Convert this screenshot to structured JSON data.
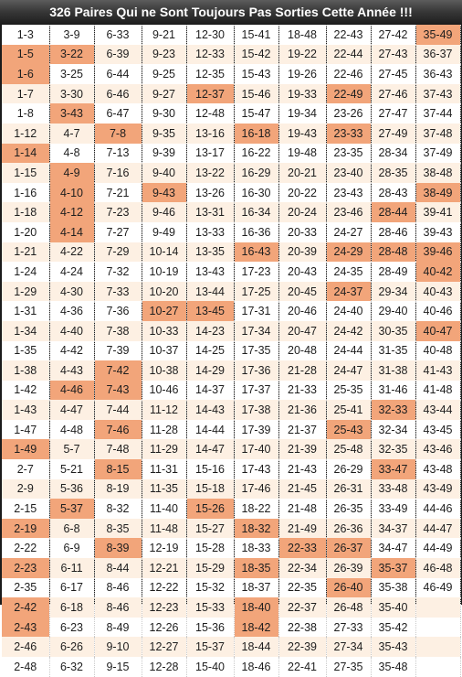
{
  "title": "326 Paires Qui ne Sont Toujours Pas Sorties Cette Année !!!",
  "colors": {
    "title_bar": "#2e2e2e",
    "title_text": "#ffffff",
    "row_light": "#ffffff",
    "row_tint": "#fdf0e3",
    "highlight": "#f2a57a",
    "frame": "#1b1b1b"
  },
  "rows": [
    [
      "1-3",
      "3-9",
      "6-33",
      "9-21",
      "12-30",
      "15-41",
      "18-48",
      "22-43",
      "27-42",
      "35-49"
    ],
    [
      "1-5",
      "3-22",
      "6-39",
      "9-23",
      "12-33",
      "15-42",
      "19-22",
      "22-44",
      "27-43",
      "36-37"
    ],
    [
      "1-6",
      "3-25",
      "6-44",
      "9-25",
      "12-35",
      "15-43",
      "19-26",
      "22-46",
      "27-45",
      "36-43"
    ],
    [
      "1-7",
      "3-30",
      "6-46",
      "9-27",
      "12-37",
      "15-46",
      "19-33",
      "22-49",
      "27-46",
      "37-43"
    ],
    [
      "1-8",
      "3-43",
      "6-47",
      "9-30",
      "12-48",
      "15-47",
      "19-34",
      "23-26",
      "27-47",
      "37-44"
    ],
    [
      "1-12",
      "4-7",
      "7-8",
      "9-35",
      "13-16",
      "16-18",
      "19-43",
      "23-33",
      "27-49",
      "37-48"
    ],
    [
      "1-14",
      "4-8",
      "7-13",
      "9-39",
      "13-17",
      "16-22",
      "19-48",
      "23-35",
      "28-34",
      "37-49"
    ],
    [
      "1-15",
      "4-9",
      "7-16",
      "9-40",
      "13-22",
      "16-29",
      "20-21",
      "23-40",
      "28-35",
      "38-48"
    ],
    [
      "1-16",
      "4-10",
      "7-21",
      "9-43",
      "13-26",
      "16-30",
      "20-22",
      "23-43",
      "28-43",
      "38-49"
    ],
    [
      "1-18",
      "4-12",
      "7-23",
      "9-46",
      "13-31",
      "16-34",
      "20-24",
      "23-46",
      "28-44",
      "39-41"
    ],
    [
      "1-20",
      "4-14",
      "7-27",
      "9-49",
      "13-33",
      "16-36",
      "20-33",
      "24-27",
      "28-46",
      "39-43"
    ],
    [
      "1-21",
      "4-22",
      "7-29",
      "10-14",
      "13-35",
      "16-43",
      "20-39",
      "24-29",
      "28-48",
      "39-46"
    ],
    [
      "1-24",
      "4-24",
      "7-32",
      "10-19",
      "13-43",
      "17-23",
      "20-43",
      "24-35",
      "28-49",
      "40-42"
    ],
    [
      "1-29",
      "4-30",
      "7-33",
      "10-20",
      "13-44",
      "17-25",
      "20-45",
      "24-37",
      "29-34",
      "40-43"
    ],
    [
      "1-31",
      "4-36",
      "7-36",
      "10-27",
      "13-45",
      "17-31",
      "20-46",
      "24-40",
      "29-40",
      "40-46"
    ],
    [
      "1-34",
      "4-40",
      "7-38",
      "10-33",
      "14-23",
      "17-34",
      "20-47",
      "24-42",
      "30-35",
      "40-47"
    ],
    [
      "1-35",
      "4-42",
      "7-39",
      "10-37",
      "14-25",
      "17-35",
      "20-48",
      "24-44",
      "31-35",
      "40-48"
    ],
    [
      "1-38",
      "4-43",
      "7-42",
      "10-38",
      "14-29",
      "17-36",
      "21-28",
      "24-47",
      "31-38",
      "41-43"
    ],
    [
      "1-42",
      "4-46",
      "7-43",
      "10-46",
      "14-37",
      "17-37",
      "21-33",
      "25-35",
      "31-46",
      "41-48"
    ],
    [
      "1-43",
      "4-47",
      "7-44",
      "11-12",
      "14-43",
      "17-38",
      "21-36",
      "25-41",
      "32-33",
      "43-44"
    ],
    [
      "1-47",
      "4-48",
      "7-46",
      "11-28",
      "14-44",
      "17-39",
      "21-37",
      "25-43",
      "32-34",
      "43-45"
    ],
    [
      "1-49",
      "5-7",
      "7-48",
      "11-29",
      "14-47",
      "17-40",
      "21-39",
      "25-48",
      "32-35",
      "43-46"
    ],
    [
      "2-7",
      "5-21",
      "8-15",
      "11-31",
      "15-16",
      "17-43",
      "21-43",
      "26-29",
      "33-47",
      "43-48"
    ],
    [
      "2-9",
      "5-36",
      "8-19",
      "11-35",
      "15-18",
      "17-46",
      "21-45",
      "26-31",
      "33-48",
      "43-49"
    ],
    [
      "2-15",
      "5-37",
      "8-32",
      "11-40",
      "15-26",
      "18-22",
      "21-48",
      "26-35",
      "33-49",
      "44-46"
    ],
    [
      "2-19",
      "6-8",
      "8-35",
      "11-48",
      "15-27",
      "18-32",
      "21-49",
      "26-36",
      "34-37",
      "44-47"
    ],
    [
      "2-22",
      "6-9",
      "8-39",
      "12-19",
      "15-28",
      "18-33",
      "22-33",
      "26-37",
      "34-47",
      "44-49"
    ],
    [
      "2-23",
      "6-11",
      "8-44",
      "12-21",
      "15-29",
      "18-35",
      "22-34",
      "26-39",
      "35-37",
      "46-48"
    ],
    [
      "2-35",
      "6-17",
      "8-46",
      "12-22",
      "15-32",
      "18-37",
      "22-35",
      "26-40",
      "35-38",
      "46-49"
    ],
    [
      "2-42",
      "6-18",
      "8-46",
      "12-23",
      "15-33",
      "18-40",
      "22-37",
      "26-48",
      "35-40",
      ""
    ],
    [
      "2-43",
      "6-23",
      "8-49",
      "12-26",
      "15-36",
      "18-42",
      "22-38",
      "27-33",
      "35-42",
      ""
    ],
    [
      "2-46",
      "6-26",
      "9-10",
      "12-27",
      "15-37",
      "18-44",
      "22-39",
      "27-34",
      "35-43",
      ""
    ],
    [
      "2-48",
      "6-32",
      "9-15",
      "12-28",
      "15-40",
      "18-46",
      "22-41",
      "27-35",
      "35-48",
      ""
    ]
  ],
  "highlighted": [
    [
      0,
      9
    ],
    [
      1,
      0
    ],
    [
      1,
      1
    ],
    [
      2,
      0
    ],
    [
      3,
      4
    ],
    [
      3,
      7
    ],
    [
      4,
      1
    ],
    [
      5,
      2
    ],
    [
      5,
      5
    ],
    [
      5,
      7
    ],
    [
      6,
      0
    ],
    [
      7,
      1
    ],
    [
      8,
      1
    ],
    [
      8,
      3
    ],
    [
      8,
      9
    ],
    [
      9,
      1
    ],
    [
      9,
      8
    ],
    [
      10,
      1
    ],
    [
      11,
      5
    ],
    [
      11,
      7
    ],
    [
      11,
      8
    ],
    [
      11,
      9
    ],
    [
      12,
      9
    ],
    [
      13,
      7
    ],
    [
      14,
      3
    ],
    [
      14,
      4
    ],
    [
      15,
      9
    ],
    [
      17,
      2
    ],
    [
      18,
      1
    ],
    [
      18,
      2
    ],
    [
      19,
      8
    ],
    [
      20,
      2
    ],
    [
      20,
      7
    ],
    [
      21,
      0
    ],
    [
      22,
      2
    ],
    [
      22,
      8
    ],
    [
      24,
      1
    ],
    [
      24,
      4
    ],
    [
      25,
      0
    ],
    [
      25,
      5
    ],
    [
      26,
      2
    ],
    [
      26,
      6
    ],
    [
      26,
      7
    ],
    [
      27,
      0
    ],
    [
      27,
      5
    ],
    [
      27,
      8
    ],
    [
      28,
      7
    ],
    [
      29,
      0
    ],
    [
      29,
      5
    ],
    [
      30,
      0
    ],
    [
      30,
      5
    ]
  ]
}
